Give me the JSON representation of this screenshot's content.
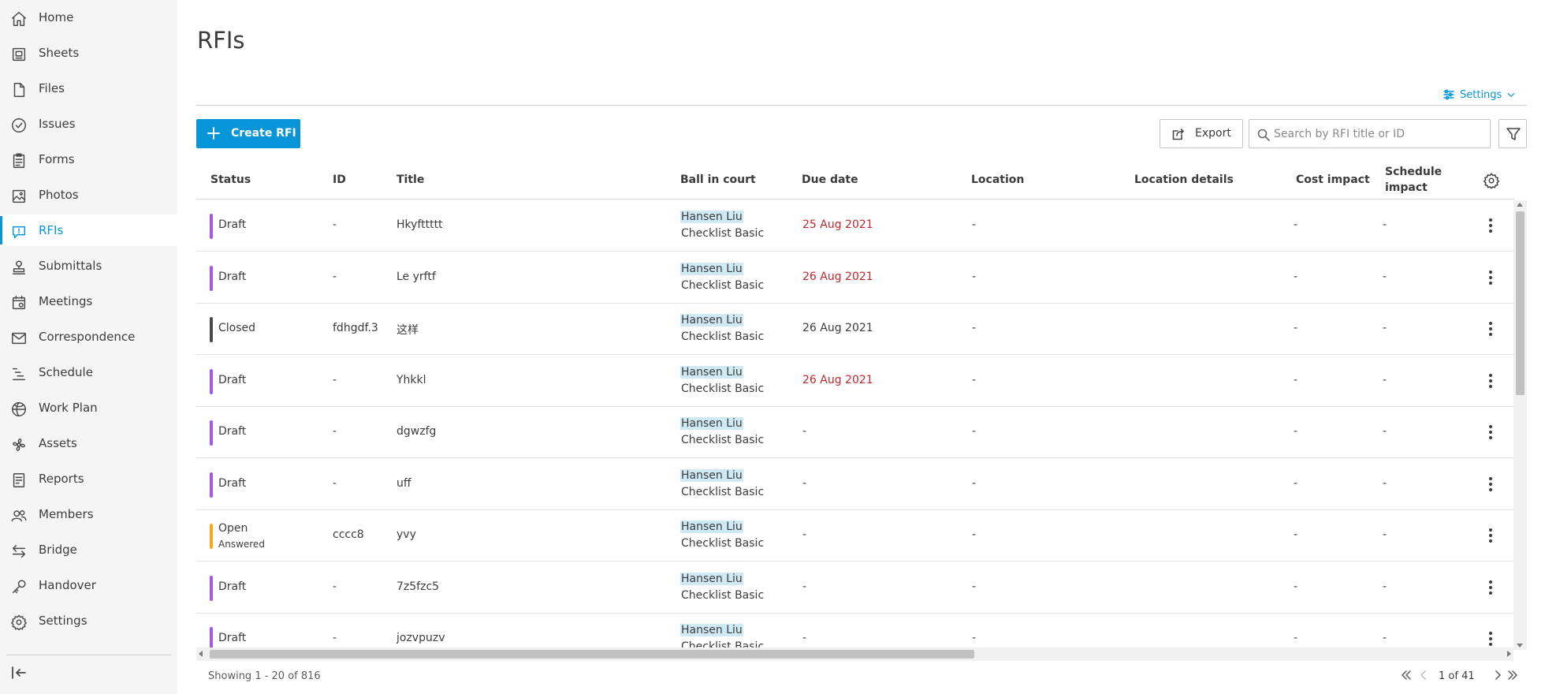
{
  "sidebar": {
    "items": [
      {
        "label": "Home",
        "icon": "home-icon"
      },
      {
        "label": "Sheets",
        "icon": "sheets-icon"
      },
      {
        "label": "Files",
        "icon": "files-icon"
      },
      {
        "label": "Issues",
        "icon": "issues-icon"
      },
      {
        "label": "Forms",
        "icon": "forms-icon"
      },
      {
        "label": "Photos",
        "icon": "photos-icon"
      },
      {
        "label": "RFIs",
        "icon": "rfis-icon",
        "active": true
      },
      {
        "label": "Submittals",
        "icon": "submittals-icon"
      },
      {
        "label": "Meetings",
        "icon": "meetings-icon"
      },
      {
        "label": "Correspondence",
        "icon": "correspondence-icon"
      },
      {
        "label": "Schedule",
        "icon": "schedule-icon"
      },
      {
        "label": "Work Plan",
        "icon": "work-plan-icon"
      },
      {
        "label": "Assets",
        "icon": "assets-icon"
      },
      {
        "label": "Reports",
        "icon": "reports-icon"
      },
      {
        "label": "Members",
        "icon": "members-icon"
      },
      {
        "label": "Bridge",
        "icon": "bridge-icon"
      },
      {
        "label": "Handover",
        "icon": "handover-icon"
      },
      {
        "label": "Settings",
        "icon": "settings-icon"
      }
    ],
    "collapse_icon": "collapse-sidebar-icon"
  },
  "page": {
    "title": "RFIs",
    "settings_label": "Settings"
  },
  "toolbar": {
    "create_label": "Create RFI",
    "export_label": "Export",
    "search_placeholder": "Search by RFI title or ID"
  },
  "table": {
    "columns": {
      "status": "Status",
      "id": "ID",
      "title": "Title",
      "ball_in_court": "Ball in court",
      "due_date": "Due date",
      "location": "Location",
      "location_details": "Location details",
      "cost_impact": "Cost impact",
      "schedule_impact_line1": "Schedule",
      "schedule_impact_line2": "impact"
    },
    "rows": [
      {
        "status": "Draft",
        "status_sub": "",
        "status_color": "#a259e6",
        "id": "-",
        "title": "Hkyfttttt",
        "bic_name": "Hansen Liu",
        "bic_sub": "Checklist Basic",
        "due": "25 Aug 2021",
        "due_late": true,
        "location": "-",
        "location_details": "",
        "cost": "-",
        "schedule": "-"
      },
      {
        "status": "Draft",
        "status_sub": "",
        "status_color": "#a259e6",
        "id": "-",
        "title": "Le yrftf",
        "bic_name": "Hansen Liu",
        "bic_sub": "Checklist Basic",
        "due": "26 Aug 2021",
        "due_late": true,
        "location": "-",
        "location_details": "",
        "cost": "-",
        "schedule": "-"
      },
      {
        "status": "Closed",
        "status_sub": "",
        "status_color": "#4a4a4a",
        "id": "fdhgdf.3",
        "title": "这样",
        "bic_name": "Hansen Liu",
        "bic_sub": "Checklist Basic",
        "due": "26 Aug 2021",
        "due_late": false,
        "location": "-",
        "location_details": "",
        "cost": "-",
        "schedule": "-"
      },
      {
        "status": "Draft",
        "status_sub": "",
        "status_color": "#a259e6",
        "id": "-",
        "title": "Yhkkl",
        "bic_name": "Hansen Liu",
        "bic_sub": "Checklist Basic",
        "due": "26 Aug 2021",
        "due_late": true,
        "location": "-",
        "location_details": "",
        "cost": "-",
        "schedule": "-"
      },
      {
        "status": "Draft",
        "status_sub": "",
        "status_color": "#a259e6",
        "id": "-",
        "title": "dgwzfg",
        "bic_name": "Hansen Liu",
        "bic_sub": "Checklist Basic",
        "due": "-",
        "due_late": false,
        "location": "-",
        "location_details": "",
        "cost": "-",
        "schedule": "-"
      },
      {
        "status": "Draft",
        "status_sub": "",
        "status_color": "#a259e6",
        "id": "-",
        "title": "uff",
        "bic_name": "Hansen Liu",
        "bic_sub": "Checklist Basic",
        "due": "-",
        "due_late": false,
        "location": "-",
        "location_details": "",
        "cost": "-",
        "schedule": "-"
      },
      {
        "status": "Open",
        "status_sub": "Answered",
        "status_color": "#f5a623",
        "id": "cccc8",
        "title": "yvy",
        "bic_name": "Hansen Liu",
        "bic_sub": "Checklist Basic",
        "due": "-",
        "due_late": false,
        "location": "-",
        "location_details": "",
        "cost": "-",
        "schedule": "-"
      },
      {
        "status": "Draft",
        "status_sub": "",
        "status_color": "#a259e6",
        "id": "-",
        "title": "7z5fzc5",
        "bic_name": "Hansen Liu",
        "bic_sub": "Checklist Basic",
        "due": "-",
        "due_late": false,
        "location": "-",
        "location_details": "",
        "cost": "-",
        "schedule": "-"
      },
      {
        "status": "Draft",
        "status_sub": "",
        "status_color": "#a259e6",
        "id": "-",
        "title": "jozvpuzv",
        "bic_name": "Hansen Liu",
        "bic_sub": "Checklist Basic",
        "due": "-",
        "due_late": false,
        "location": "-",
        "location_details": "",
        "cost": "-",
        "schedule": "-"
      }
    ]
  },
  "footer": {
    "showing": "Showing 1 - 20 of 816",
    "page_text": "1 of 41"
  },
  "colors": {
    "accent": "#0696d7",
    "late": "#c0272d",
    "highlight": "#cfe9f5"
  }
}
